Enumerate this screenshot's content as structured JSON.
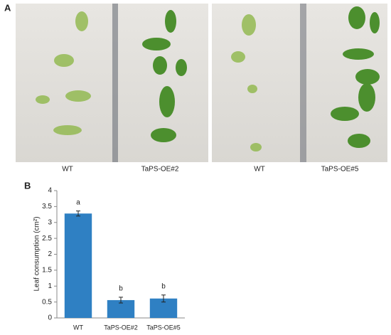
{
  "panel_a": {
    "label": "A",
    "captions": [
      "WT",
      "TaPS-OE#2",
      "WT",
      "TaPS-OE#5"
    ]
  },
  "chart_data": {
    "type": "bar",
    "label": "B",
    "y_label": "Leaf consumption (cm²)",
    "categories": [
      "WT",
      "TaPS-OE#2",
      "TaPS-OE#5"
    ],
    "values": [
      3.28,
      0.56,
      0.61
    ],
    "errors": [
      0.08,
      0.09,
      0.11
    ],
    "annotations": [
      "a",
      "b",
      "b"
    ],
    "color": "#2f80c3",
    "ylim": [
      0,
      4
    ],
    "yticks": [
      0,
      0.5,
      1,
      1.5,
      2,
      2.5,
      3,
      3.5,
      4
    ]
  }
}
